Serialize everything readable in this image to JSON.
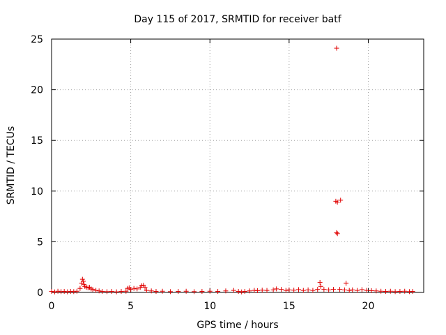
{
  "chart_data": {
    "type": "scatter",
    "title": "Day 115 of 2017, SRMTID for receiver batf",
    "xlabel": "GPS time / hours",
    "ylabel": "SRMTID / TECUs",
    "xlim": [
      0,
      23.5
    ],
    "ylim": [
      0,
      25
    ],
    "xticks": [
      "0",
      "5",
      "10",
      "15",
      "20"
    ],
    "yticks": [
      "0",
      "5",
      "10",
      "15",
      "20",
      "25"
    ],
    "grid": true,
    "marker": "+",
    "color": "#e00000",
    "series": [
      {
        "points": [
          [
            0.0,
            0.1
          ],
          [
            0.2,
            0.05
          ],
          [
            0.4,
            0.12
          ],
          [
            0.6,
            0.08
          ],
          [
            0.8,
            0.1
          ],
          [
            1.0,
            0.06
          ],
          [
            1.2,
            0.1
          ],
          [
            1.4,
            0.08
          ],
          [
            1.6,
            0.12
          ],
          [
            1.8,
            0.4
          ],
          [
            1.9,
            0.9
          ],
          [
            1.95,
            1.3
          ],
          [
            2.0,
            1.1
          ],
          [
            2.05,
            0.8
          ],
          [
            2.1,
            0.6
          ],
          [
            2.2,
            0.5
          ],
          [
            2.3,
            0.45
          ],
          [
            2.4,
            0.5
          ],
          [
            2.5,
            0.35
          ],
          [
            2.6,
            0.3
          ],
          [
            2.8,
            0.2
          ],
          [
            3.0,
            0.15
          ],
          [
            3.2,
            0.1
          ],
          [
            3.5,
            0.08
          ],
          [
            3.8,
            0.1
          ],
          [
            4.1,
            0.06
          ],
          [
            4.4,
            0.1
          ],
          [
            4.7,
            0.12
          ],
          [
            4.8,
            0.4
          ],
          [
            4.9,
            0.45
          ],
          [
            5.0,
            0.3
          ],
          [
            5.2,
            0.4
          ],
          [
            5.4,
            0.35
          ],
          [
            5.6,
            0.5
          ],
          [
            5.7,
            0.65
          ],
          [
            5.8,
            0.7
          ],
          [
            5.9,
            0.5
          ],
          [
            6.0,
            0.2
          ],
          [
            6.3,
            0.15
          ],
          [
            6.6,
            0.1
          ],
          [
            7.0,
            0.12
          ],
          [
            7.5,
            0.08
          ],
          [
            8.0,
            0.1
          ],
          [
            8.5,
            0.12
          ],
          [
            9.0,
            0.08
          ],
          [
            9.5,
            0.1
          ],
          [
            10.0,
            0.12
          ],
          [
            10.5,
            0.1
          ],
          [
            11.0,
            0.15
          ],
          [
            11.5,
            0.2
          ],
          [
            11.8,
            0.1
          ],
          [
            12.0,
            0.05
          ],
          [
            12.2,
            0.1
          ],
          [
            12.5,
            0.15
          ],
          [
            12.8,
            0.2
          ],
          [
            13.0,
            0.18
          ],
          [
            13.3,
            0.22
          ],
          [
            13.6,
            0.2
          ],
          [
            14.0,
            0.25
          ],
          [
            14.2,
            0.35
          ],
          [
            14.5,
            0.3
          ],
          [
            14.8,
            0.2
          ],
          [
            15.0,
            0.25
          ],
          [
            15.3,
            0.22
          ],
          [
            15.6,
            0.28
          ],
          [
            15.9,
            0.2
          ],
          [
            16.2,
            0.25
          ],
          [
            16.5,
            0.2
          ],
          [
            16.8,
            0.3
          ],
          [
            16.95,
            1.0
          ],
          [
            17.0,
            0.6
          ],
          [
            17.2,
            0.3
          ],
          [
            17.5,
            0.25
          ],
          [
            17.8,
            0.3
          ],
          [
            18.0,
            24.1
          ],
          [
            17.95,
            9.0
          ],
          [
            18.05,
            8.9
          ],
          [
            18.25,
            9.1
          ],
          [
            18.0,
            5.9
          ],
          [
            18.05,
            5.8
          ],
          [
            18.6,
            0.9
          ],
          [
            18.2,
            0.3
          ],
          [
            18.5,
            0.25
          ],
          [
            18.8,
            0.2
          ],
          [
            19.0,
            0.25
          ],
          [
            19.3,
            0.2
          ],
          [
            19.6,
            0.28
          ],
          [
            19.9,
            0.2
          ],
          [
            20.2,
            0.18
          ],
          [
            20.5,
            0.15
          ],
          [
            20.8,
            0.12
          ],
          [
            21.1,
            0.1
          ],
          [
            21.4,
            0.12
          ],
          [
            21.7,
            0.08
          ],
          [
            22.0,
            0.1
          ],
          [
            22.3,
            0.12
          ],
          [
            22.6,
            0.08
          ],
          [
            22.8,
            0.1
          ]
        ]
      }
    ]
  }
}
